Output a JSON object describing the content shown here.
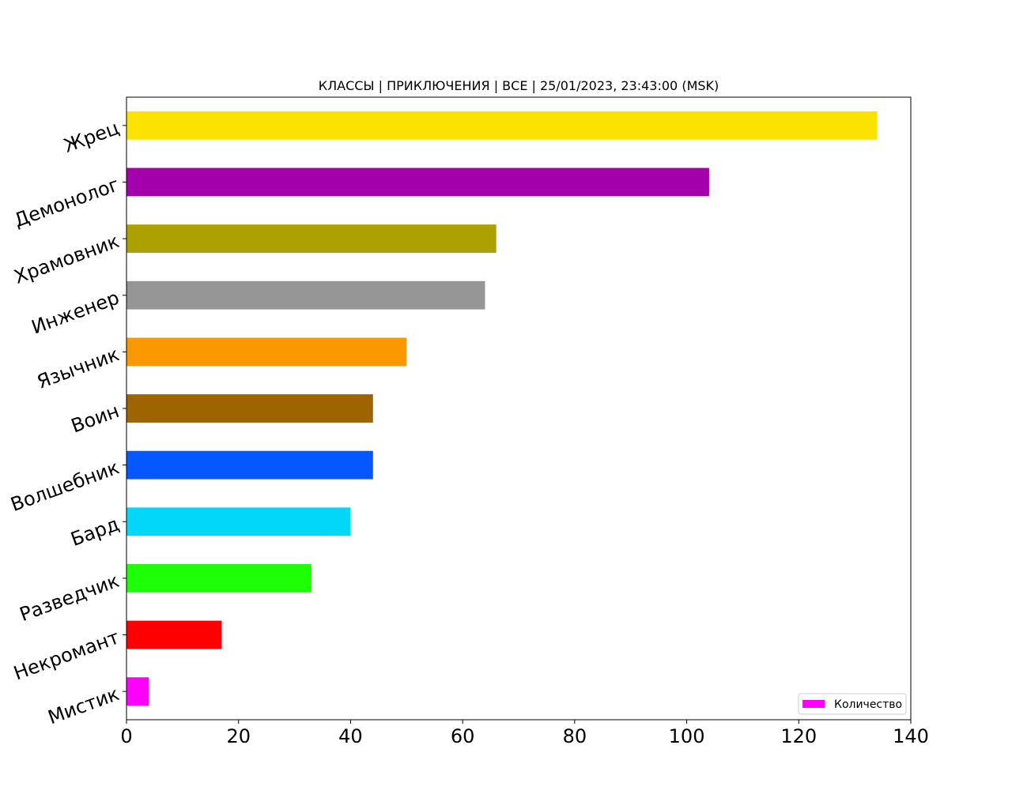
{
  "chart_data": {
    "type": "bar",
    "orientation": "horizontal",
    "title": "КЛАССЫ | ПРИКЛЮЧЕНИЯ | ВСЕ | 25/01/2023, 23:43:00 (MSK)",
    "xlabel": "",
    "ylabel": "",
    "xlim": [
      0,
      140
    ],
    "xticks": [
      0,
      20,
      40,
      60,
      80,
      100,
      120,
      140
    ],
    "grid": false,
    "legend_position": "bottom-right",
    "series": [
      {
        "name": "Количество",
        "legend_color": "#ff00ff"
      }
    ],
    "categories": [
      "Жрец",
      "Демонолог",
      "Храмовник",
      "Инженер",
      "Язычник",
      "Воин",
      "Волшебник",
      "Бард",
      "Разведчик",
      "Некромант",
      "Мистик"
    ],
    "values": [
      134,
      104,
      66,
      64,
      50,
      44,
      44,
      40,
      33,
      17,
      4
    ],
    "colors": [
      "#fbe200",
      "#a300ab",
      "#aca100",
      "#969696",
      "#fb9800",
      "#9d6400",
      "#0557ff",
      "#03d7f9",
      "#1eff07",
      "#ff0000",
      "#ff00ff"
    ]
  }
}
